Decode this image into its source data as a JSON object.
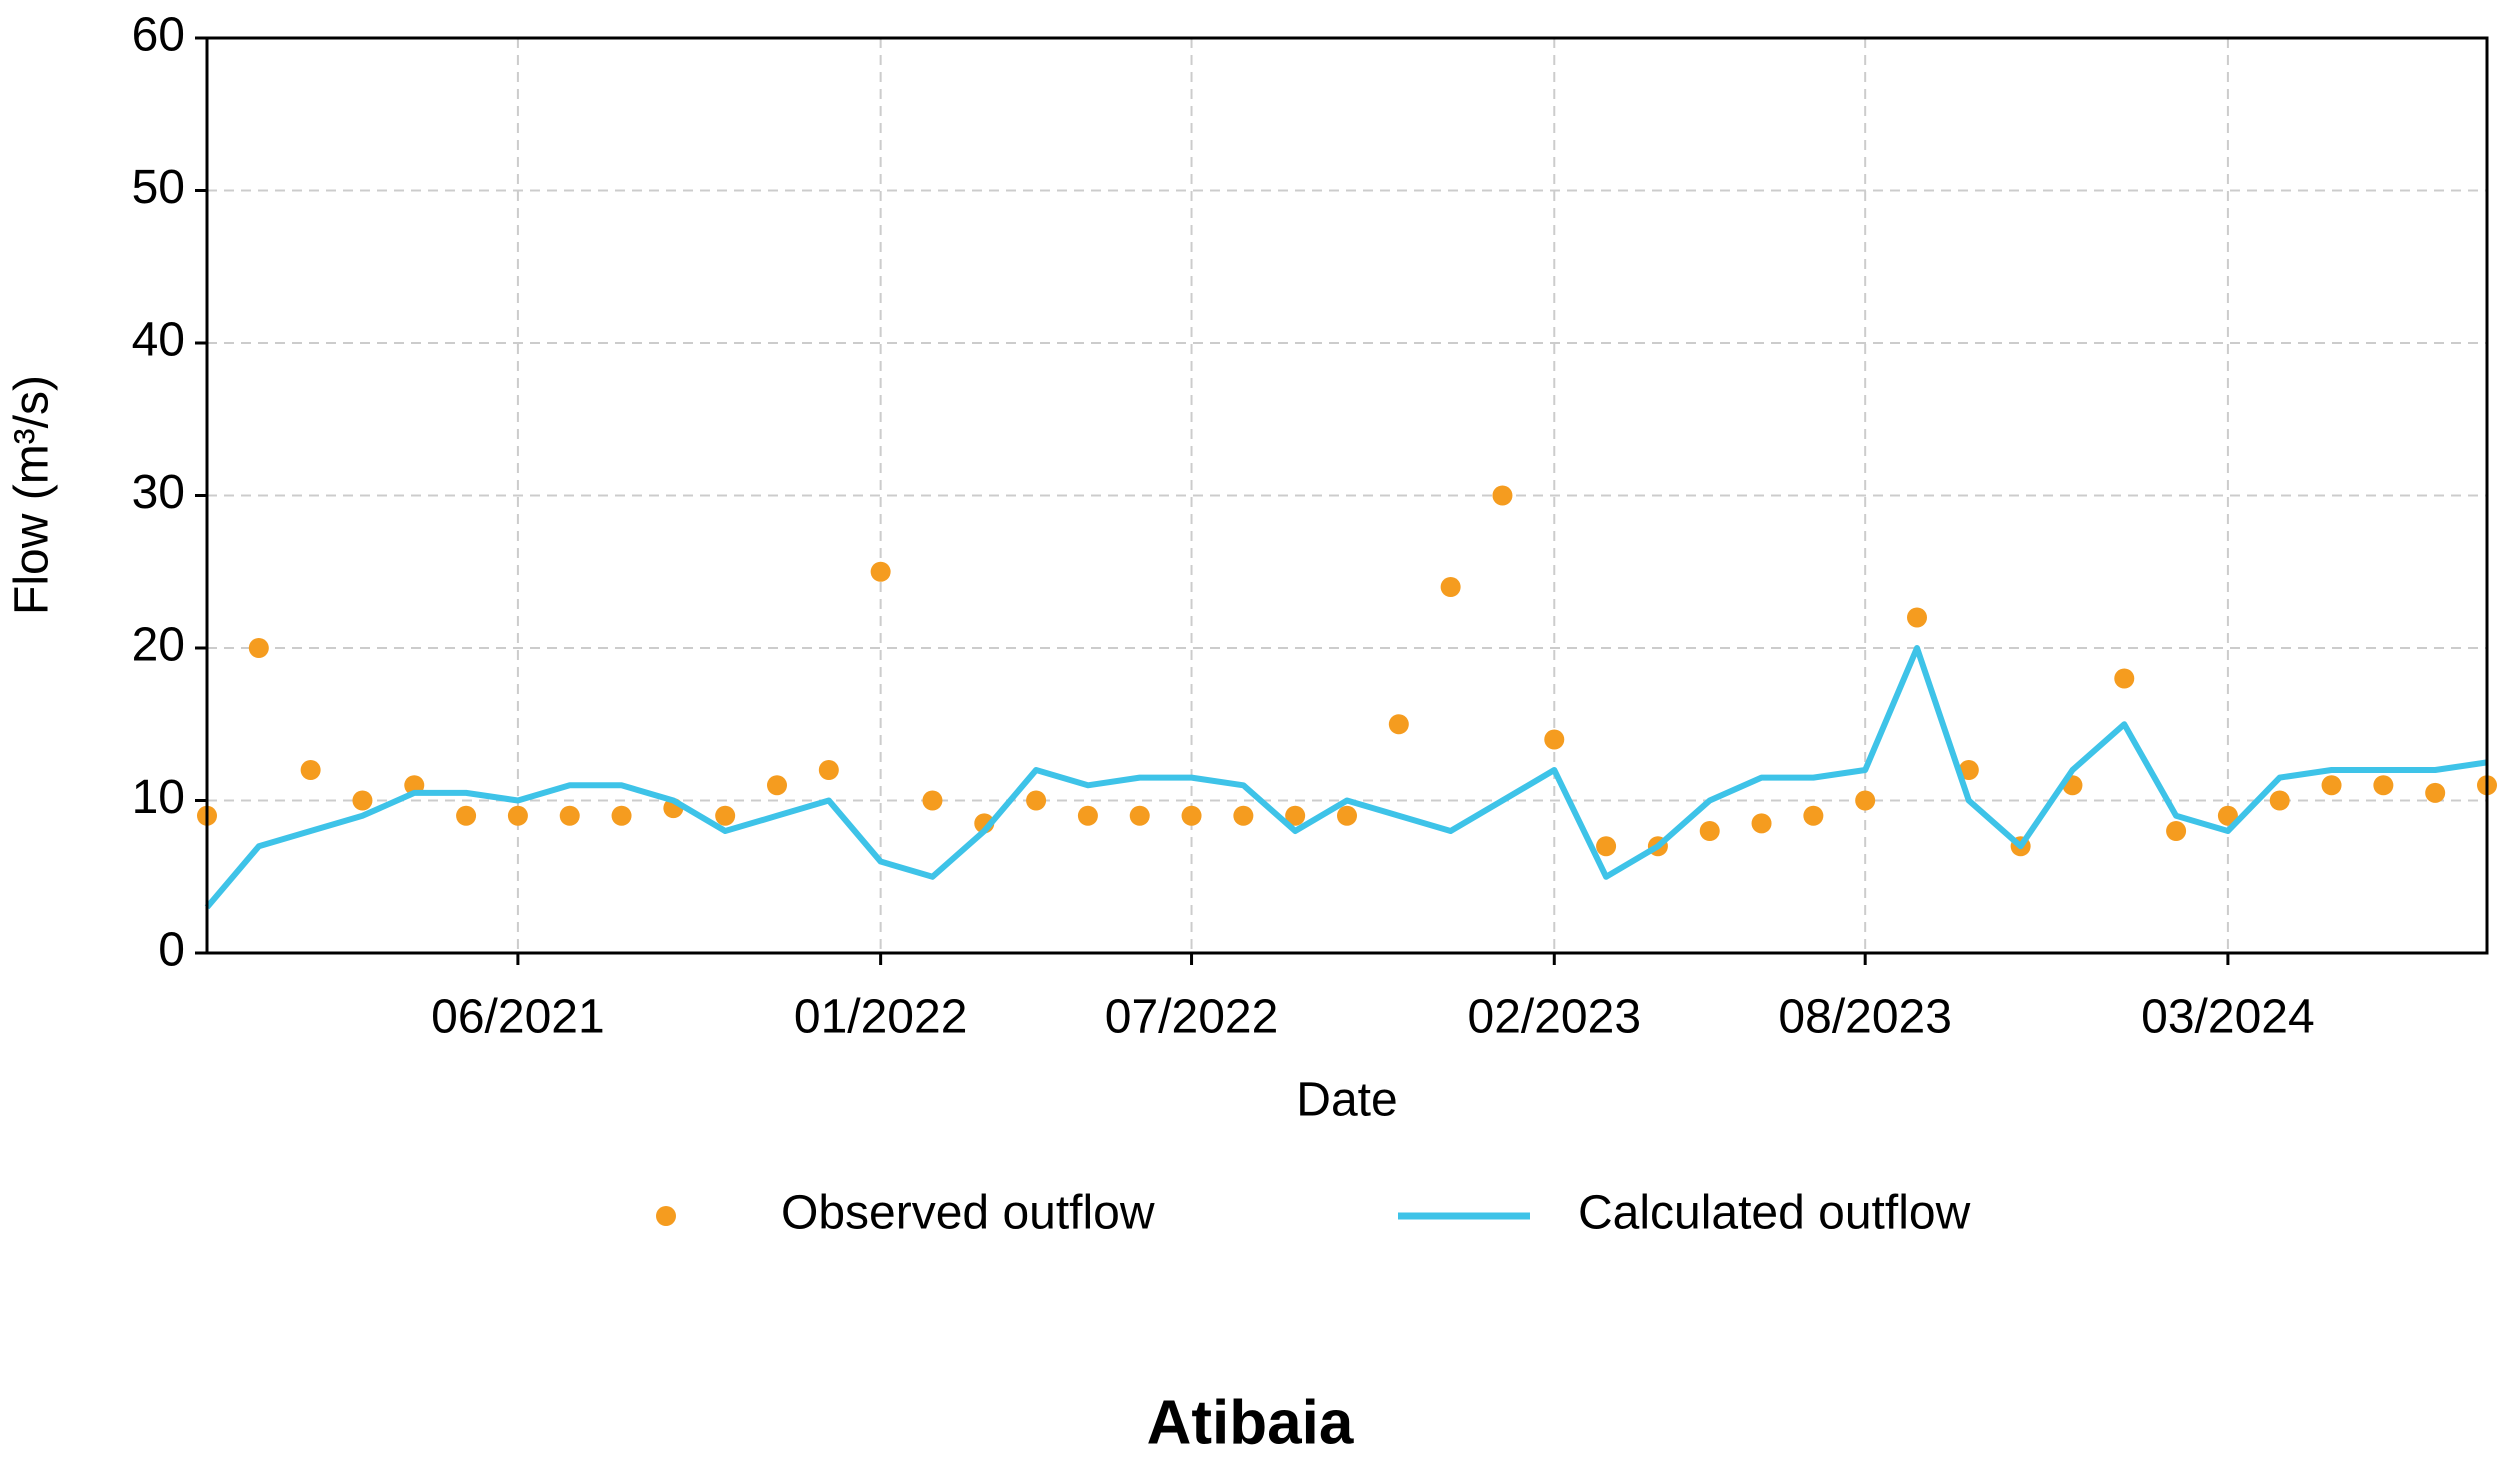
{
  "chart_data": {
    "type": "line",
    "title": "Atibaia",
    "xlabel": "Date",
    "ylabel": "Flow (m³/s)",
    "x": [
      "2020-12",
      "2021-01",
      "2021-02",
      "2021-03",
      "2021-04",
      "2021-05",
      "2021-06",
      "2021-07",
      "2021-08",
      "2021-09",
      "2021-10",
      "2021-11",
      "2021-12",
      "2022-01",
      "2022-02",
      "2022-03",
      "2022-04",
      "2022-05",
      "2022-06",
      "2022-07",
      "2022-08",
      "2022-09",
      "2022-10",
      "2022-11",
      "2022-12",
      "2023-01",
      "2023-02",
      "2023-03",
      "2023-04",
      "2023-05",
      "2023-06",
      "2023-07",
      "2023-08",
      "2023-09",
      "2023-10",
      "2023-11",
      "2023-12",
      "2024-01",
      "2024-02",
      "2024-03",
      "2024-04",
      "2024-05",
      "2024-06",
      "2024-07",
      "2024-08"
    ],
    "series": [
      {
        "name": "Observed outflow",
        "kind": "scatter",
        "color": "#f59c1f",
        "values": [
          9,
          20,
          12,
          10,
          11,
          9,
          9,
          9,
          9,
          9.5,
          9,
          11,
          12,
          25,
          10,
          8.5,
          10,
          9,
          9,
          9,
          9,
          9,
          9,
          15,
          24,
          30,
          14,
          7,
          7,
          8,
          8.5,
          9,
          10,
          22,
          12,
          7,
          11,
          18,
          8,
          9,
          10,
          11,
          11,
          10.5,
          11
        ]
      },
      {
        "name": "Calculated outflow",
        "kind": "line",
        "color": "#3ec3e8",
        "values": [
          3,
          7,
          8,
          9,
          10.5,
          10.5,
          10,
          11,
          11,
          10,
          8,
          9,
          10,
          6,
          5,
          8,
          12,
          11,
          11.5,
          11.5,
          11,
          8,
          10,
          9,
          8,
          10,
          12,
          5,
          7,
          10,
          11.5,
          11.5,
          12,
          20,
          10,
          7,
          12,
          15,
          9,
          8,
          11.5,
          12,
          12,
          12,
          12.5
        ]
      }
    ],
    "xlim": [
      "2020-12",
      "2024-08"
    ],
    "xticks": [
      {
        "value": "2021-06",
        "label": "06/2021"
      },
      {
        "value": "2022-01",
        "label": "01/2022"
      },
      {
        "value": "2022-07",
        "label": "07/2022"
      },
      {
        "value": "2023-02",
        "label": "02/2023"
      },
      {
        "value": "2023-08",
        "label": "08/2023"
      },
      {
        "value": "2024-03",
        "label": "03/2024"
      }
    ],
    "ylim": [
      0,
      60
    ],
    "yticks": [
      0,
      10,
      20,
      30,
      40,
      50,
      60
    ],
    "grid": true,
    "legend": "bottom"
  }
}
